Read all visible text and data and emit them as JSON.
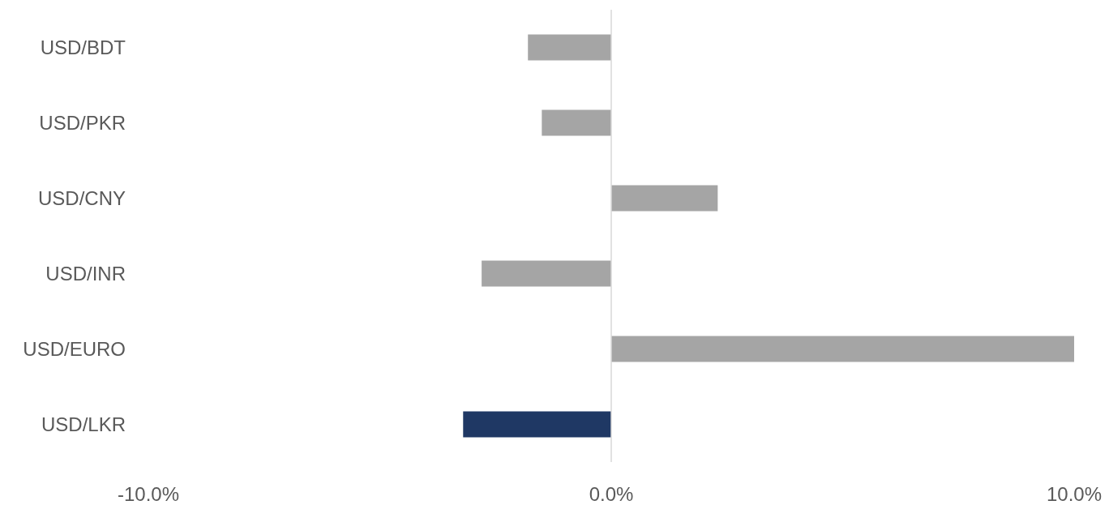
{
  "chart_data": {
    "type": "bar",
    "orientation": "horizontal",
    "categories": [
      "USD/BDT",
      "USD/PKR",
      "USD/CNY",
      "USD/INR",
      "USD/EURO",
      "USD/LKR"
    ],
    "values": [
      -1.8,
      -1.5,
      2.3,
      -2.8,
      10.0,
      -3.2
    ],
    "colors": [
      "#a5a5a5",
      "#a5a5a5",
      "#a5a5a5",
      "#a5a5a5",
      "#a5a5a5",
      "#1f3864"
    ],
    "xlim": [
      -10,
      10
    ],
    "xticks": [
      {
        "value": -10,
        "label": "-10.0%"
      },
      {
        "value": 0,
        "label": "0.0%"
      },
      {
        "value": 10,
        "label": "10.0%"
      }
    ]
  }
}
